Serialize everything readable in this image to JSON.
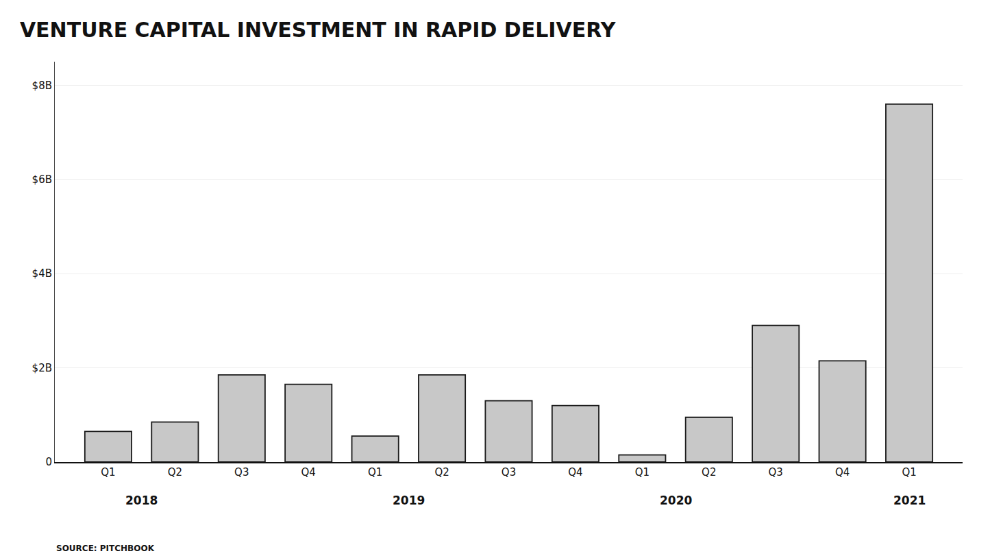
{
  "chart_data": {
    "type": "bar",
    "title": "VENTURE CAPITAL INVESTMENT IN RAPID DELIVERY",
    "categories": [
      "Q1",
      "Q2",
      "Q3",
      "Q4",
      "Q1",
      "Q2",
      "Q3",
      "Q4",
      "Q1",
      "Q2",
      "Q3",
      "Q4",
      "Q1"
    ],
    "values": [
      0.65,
      0.85,
      1.85,
      1.65,
      0.55,
      1.85,
      1.3,
      1.2,
      0.15,
      0.95,
      2.9,
      2.15,
      7.6
    ],
    "color": "#c8c8c8",
    "ylim": [
      0,
      8.5
    ],
    "yticks": [
      0,
      {
        "value": 2,
        "label": "$2B"
      },
      {
        "value": 4,
        "label": "$4B"
      },
      {
        "value": 6,
        "label": "$6B"
      },
      {
        "value": 8,
        "label": "$8B"
      }
    ],
    "grid": true,
    "annotations": [
      {
        "text": "2018",
        "x": 0.5
      },
      {
        "text": "2019",
        "x": 4.5
      },
      {
        "text": "2020",
        "x": 8.5
      },
      {
        "text": "2021",
        "x": 12
      },
      {
        "text": "SOURCE: PITCHBOOK"
      }
    ]
  }
}
